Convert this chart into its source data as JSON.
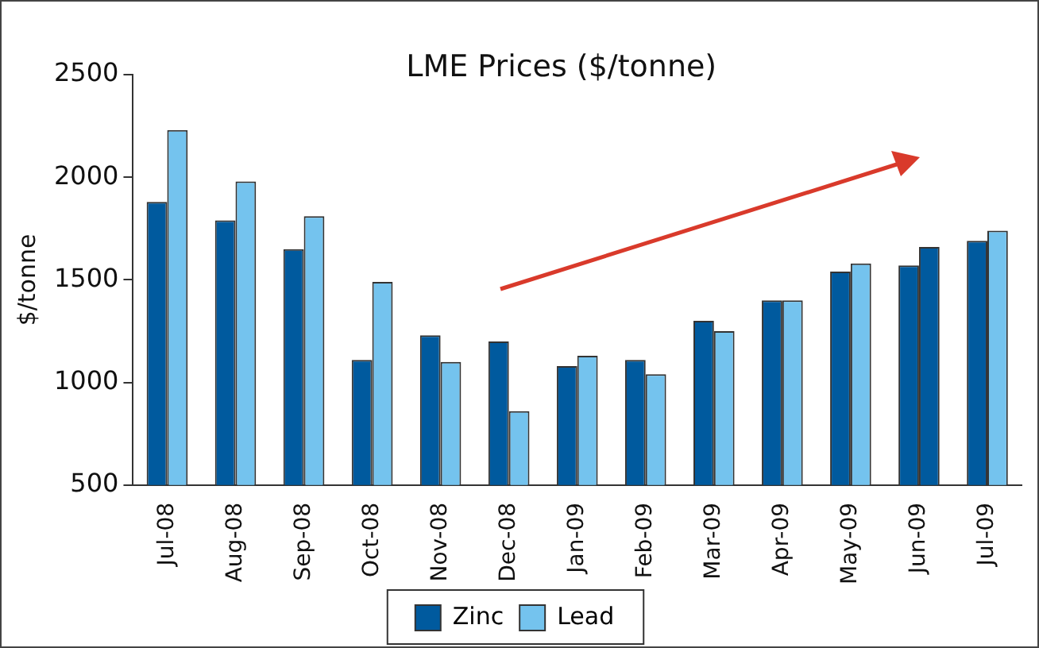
{
  "chart_data": {
    "type": "bar",
    "title": "LME Prices ($/tonne)",
    "ylabel": "$/tonne",
    "categories": [
      "Jul-08",
      "Aug-08",
      "Sep-08",
      "Oct-08",
      "Nov-08",
      "Dec-08",
      "Jan-09",
      "Feb-09",
      "Mar-09",
      "Apr-09",
      "May-09",
      "Jun-09",
      "Jul-09"
    ],
    "series": [
      {
        "name": "Zinc",
        "color": "#005a9e",
        "values": [
          1880,
          1790,
          1650,
          1110,
          1230,
          1200,
          1080,
          1110,
          1300,
          1400,
          1540,
          1570,
          1690
        ]
      },
      {
        "name": "Lead",
        "color": "#74c3ee",
        "colors": [
          "#74c3ee",
          "#74c3ee",
          "#74c3ee",
          "#74c3ee",
          "#74c3ee",
          "#74c3ee",
          "#74c3ee",
          "#74c3ee",
          "#74c3ee",
          "#74c3ee",
          "#74c3ee",
          "#005a9e",
          "#74c3ee"
        ],
        "values": [
          2230,
          1980,
          1810,
          1490,
          1100,
          860,
          1130,
          1040,
          1250,
          1400,
          1580,
          1660,
          1740
        ]
      }
    ],
    "ylim": [
      500,
      2500
    ],
    "yticks": [
      500,
      1000,
      1500,
      2000,
      2500
    ],
    "grid": false,
    "legend": "bottom"
  }
}
